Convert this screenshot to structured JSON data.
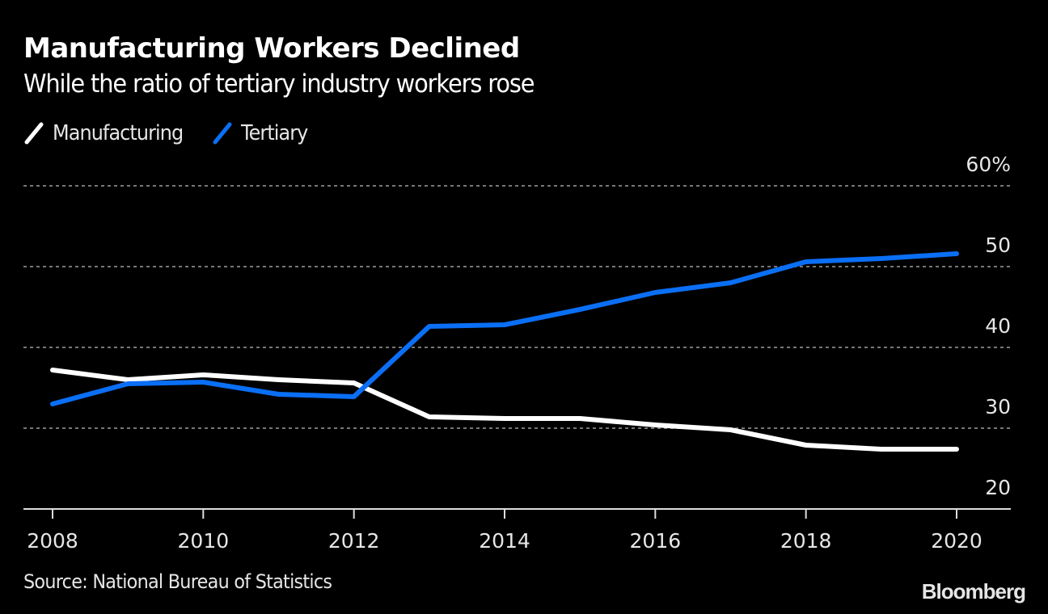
{
  "header": {
    "title": "Manufacturing Workers Declined",
    "subtitle": "While the ratio of tertiary industry workers rose"
  },
  "legend": [
    {
      "label": "Manufacturing",
      "color": "#ffffff"
    },
    {
      "label": "Tertiary",
      "color": "#0a6ff5"
    }
  ],
  "footer": {
    "source": "Source: National Bureau of Statistics",
    "brand": "Bloomberg"
  },
  "colors": {
    "background": "#000000",
    "gridline": "#777777",
    "axis": "#dddddd",
    "text": "#e6e6e6"
  },
  "chart_data": {
    "type": "line",
    "title": "Manufacturing Workers Declined",
    "subtitle": "While the ratio of tertiary industry workers rose",
    "xlabel": "",
    "ylabel": "",
    "x": [
      2008,
      2009,
      2010,
      2011,
      2012,
      2013,
      2014,
      2015,
      2016,
      2017,
      2018,
      2019,
      2020
    ],
    "x_ticks": [
      "2008",
      "2010",
      "2012",
      "2014",
      "2016",
      "2018",
      "2020"
    ],
    "y_ticks": [
      {
        "value": 20,
        "label": "20"
      },
      {
        "value": 30,
        "label": "30"
      },
      {
        "value": 40,
        "label": "40"
      },
      {
        "value": 50,
        "label": "50"
      },
      {
        "value": 60,
        "label": "60%"
      }
    ],
    "ylim": [
      20,
      60
    ],
    "xlim": [
      2008,
      2020
    ],
    "grid": true,
    "y_axis_position": "right",
    "legend_position": "top-left",
    "series": [
      {
        "name": "Manufacturing",
        "color": "#ffffff",
        "values": [
          37.2,
          36.0,
          36.6,
          36.0,
          35.6,
          31.4,
          31.2,
          31.2,
          30.4,
          29.8,
          27.9,
          27.4,
          27.4
        ]
      },
      {
        "name": "Tertiary",
        "color": "#0a6ff5",
        "values": [
          33.0,
          35.5,
          35.7,
          34.2,
          33.9,
          42.6,
          42.8,
          44.7,
          46.8,
          48.0,
          50.6,
          51.0,
          51.6
        ]
      }
    ],
    "source": "Source: National Bureau of Statistics"
  }
}
